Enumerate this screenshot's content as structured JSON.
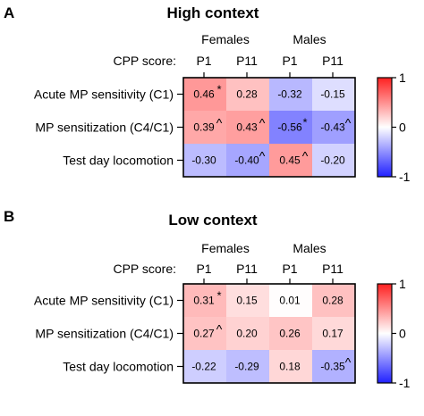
{
  "chart_data": [
    {
      "type": "heatmap",
      "panel_label": "A",
      "title": "High context",
      "group_labels": [
        "Females",
        "Males"
      ],
      "row_header": "CPP score:",
      "columns": [
        "P1",
        "P11",
        "P1",
        "P11"
      ],
      "rows": [
        "Acute MP sensitivity (C1)",
        "MP sensitization (C4/C1)",
        "Test day locomotion"
      ],
      "values": [
        [
          0.46,
          0.28,
          -0.32,
          -0.15
        ],
        [
          0.39,
          0.43,
          -0.56,
          -0.43
        ],
        [
          -0.3,
          -0.4,
          0.45,
          -0.2
        ]
      ],
      "cell_labels": [
        [
          "0.46",
          "0.28",
          "-0.32",
          "-0.15"
        ],
        [
          "0.39",
          "0.43",
          "-0.56",
          "-0.43"
        ],
        [
          "-0.30",
          "-0.40",
          "0.45",
          "-0.20"
        ]
      ],
      "marks": [
        [
          "*",
          "",
          "",
          ""
        ],
        [
          "^",
          "^",
          "*",
          "^"
        ],
        [
          "",
          "^",
          "^",
          ""
        ]
      ],
      "colorbar": {
        "min": -1,
        "max": 1,
        "ticks": [
          "1",
          "0",
          "-1"
        ],
        "low_color": "#2020ff",
        "mid_color": "#ffffff",
        "high_color": "#ff2020"
      }
    },
    {
      "type": "heatmap",
      "panel_label": "B",
      "title": "Low context",
      "group_labels": [
        "Females",
        "Males"
      ],
      "row_header": "CPP score:",
      "columns": [
        "P1",
        "P11",
        "P1",
        "P11"
      ],
      "rows": [
        "Acute MP sensitivity (C1)",
        "MP sensitization (C4/C1)",
        "Test day locomotion"
      ],
      "values": [
        [
          0.31,
          0.15,
          0.01,
          0.28
        ],
        [
          0.27,
          0.2,
          0.26,
          0.17
        ],
        [
          -0.22,
          -0.29,
          0.18,
          -0.35
        ]
      ],
      "cell_labels": [
        [
          "0.31",
          "0.15",
          "0.01",
          "0.28"
        ],
        [
          "0.27",
          "0.20",
          "0.26",
          "0.17"
        ],
        [
          "-0.22",
          "-0.29",
          "0.18",
          "-0.35"
        ]
      ],
      "marks": [
        [
          "*",
          "",
          "",
          ""
        ],
        [
          "^",
          "",
          "",
          ""
        ],
        [
          "",
          "",
          "",
          "^"
        ]
      ],
      "colorbar": {
        "min": -1,
        "max": 1,
        "ticks": [
          "1",
          "0",
          "-1"
        ],
        "low_color": "#2020ff",
        "mid_color": "#ffffff",
        "high_color": "#ff2020"
      }
    }
  ]
}
